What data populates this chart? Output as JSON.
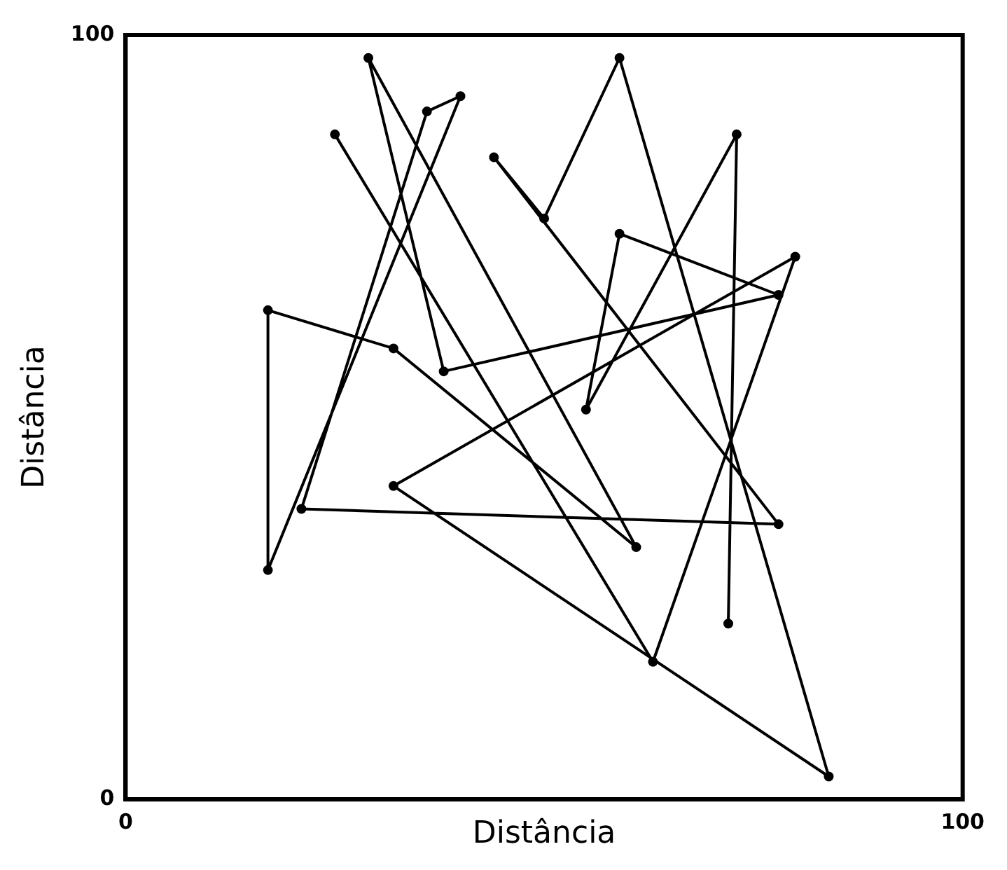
{
  "chart_data": {
    "type": "line",
    "xlabel": "Distância",
    "ylabel": "Distância",
    "xlim": [
      0,
      100
    ],
    "ylim": [
      0,
      100
    ],
    "xticks": [
      0,
      100
    ],
    "yticks": [
      0,
      100
    ],
    "legend": false,
    "marker": "circle",
    "line_style": "solid",
    "series": [
      {
        "color": "#000000",
        "x": [
          25,
          63,
          80,
          32,
          84,
          59,
          50,
          44,
          78,
          21,
          36,
          40,
          17,
          17,
          32,
          61,
          29,
          38,
          78,
          59,
          55,
          73,
          72
        ],
        "values": [
          87,
          18,
          71,
          41,
          3,
          97,
          76,
          84,
          36,
          38,
          90,
          92,
          30,
          64,
          59,
          33,
          97,
          56,
          66,
          74,
          51,
          87,
          23
        ]
      }
    ]
  }
}
